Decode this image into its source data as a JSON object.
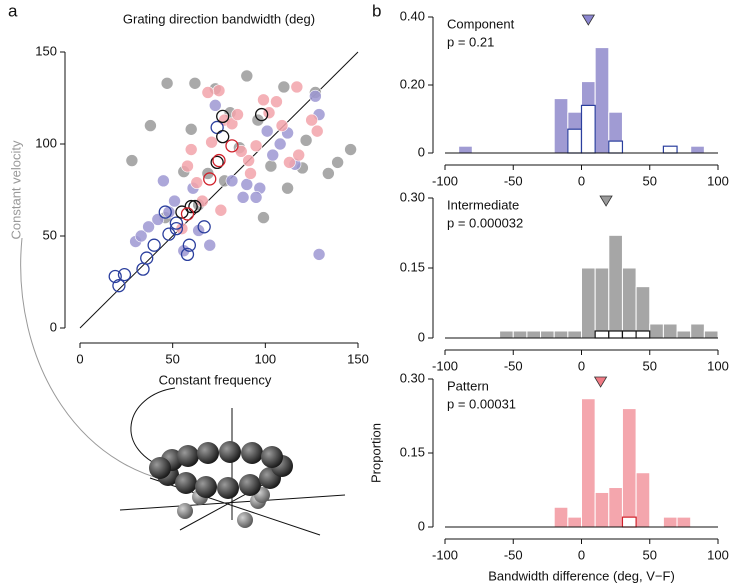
{
  "chart_data": [
    {
      "type": "scatter",
      "panel": "a",
      "title": "Grating direction bandwidth (deg)",
      "xlabel": "Constant frequency",
      "ylabel": "Constant velocity",
      "xlim": [
        0,
        150
      ],
      "ylim": [
        0,
        150
      ],
      "xticks": [
        0,
        50,
        100,
        150
      ],
      "yticks": [
        0,
        50,
        100,
        150
      ],
      "identity_line": true,
      "series": [
        {
          "color": "#9a9a9a",
          "open": false,
          "x": [
            28,
            38,
            47,
            60,
            62,
            69,
            73,
            81,
            90,
            96,
            103,
            110,
            112,
            122,
            127,
            134,
            139,
            146,
            99,
            78,
            86,
            56,
            46,
            64,
            120
          ],
          "values": [
            91,
            110,
            133,
            108,
            133,
            84,
            130,
            117,
            137,
            113,
            88,
            131,
            76,
            102,
            128,
            84,
            90,
            97,
            60,
            80,
            98,
            85,
            60,
            67,
            87
          ]
        },
        {
          "color": "#9d98d2",
          "open": false,
          "x": [
            30,
            33,
            42,
            45,
            51,
            56,
            64,
            73,
            82,
            90,
            97,
            101,
            104,
            112,
            116,
            129,
            129,
            127,
            61,
            48,
            37,
            88,
            70,
            95,
            108
          ],
          "values": [
            47,
            50,
            59,
            80,
            69,
            42,
            53,
            121,
            80,
            78,
            76,
            107,
            94,
            106,
            89,
            116,
            40,
            126,
            76,
            63,
            55,
            71,
            45,
            71,
            100
          ]
        },
        {
          "color": "#f2a3aa",
          "open": false,
          "x": [
            55,
            60,
            63,
            71,
            78,
            82,
            85,
            91,
            95,
            99,
            102,
            106,
            109,
            113,
            117,
            125,
            128,
            75,
            69,
            87,
            92,
            66,
            58,
            76,
            118
          ],
          "values": [
            54,
            97,
            79,
            101,
            113,
            111,
            116,
            91,
            99,
            124,
            117,
            123,
            110,
            90,
            131,
            113,
            107,
            129,
            128,
            96,
            84,
            69,
            88,
            64,
            94
          ]
        },
        {
          "color": "#2b3f9e",
          "open": true,
          "x": [
            19,
            21,
            24,
            34,
            36,
            40,
            48,
            52,
            58,
            59,
            67,
            52,
            46,
            74
          ],
          "values": [
            28,
            23,
            29,
            32,
            38,
            45,
            51,
            54,
            40,
            45,
            55,
            57,
            63,
            109
          ]
        },
        {
          "color": "#111111",
          "open": true,
          "x": [
            60,
            62,
            77,
            77,
            98,
            55,
            74
          ],
          "values": [
            66,
            66,
            104,
            115,
            116,
            63,
            90
          ]
        },
        {
          "color": "#d0202a",
          "open": true,
          "x": [
            75,
            70,
            82,
            58
          ],
          "values": [
            91,
            81,
            99,
            62
          ]
        }
      ]
    },
    {
      "type": "histogram",
      "panel": "b",
      "title": "Component",
      "subtitle": "p = 0.21",
      "xlim": [
        -100,
        100
      ],
      "xticks": [
        -100,
        -50,
        0,
        50,
        100
      ],
      "ylim": [
        0,
        0.4
      ],
      "yticks": [
        0,
        {
          "value": 0.2,
          "label": "0.20"
        },
        {
          "value": 0.4,
          "label": "0.40"
        }
      ],
      "bins": [
        -100,
        -90,
        -80,
        -70,
        -60,
        -50,
        -40,
        -30,
        -20,
        -10,
        0,
        10,
        20,
        30,
        40,
        50,
        60,
        70,
        80,
        90,
        100
      ],
      "series": [
        {
          "color": "#a09bd3",
          "open": false,
          "values": [
            0,
            0.02,
            0,
            0,
            0,
            0,
            0,
            0,
            0.16,
            0.12,
            0.21,
            0.31,
            0.12,
            0,
            0,
            0,
            0,
            0,
            0.02,
            0
          ]
        },
        {
          "color": "#2b3f9e",
          "open": true,
          "values": [
            0,
            0,
            0,
            0,
            0,
            0,
            0,
            0,
            0,
            0.07,
            0.14,
            0,
            0.035,
            0,
            0,
            0,
            0.02,
            0,
            0,
            0
          ]
        }
      ],
      "median": {
        "value": 5,
        "color": "#8b86d0"
      }
    },
    {
      "type": "histogram",
      "title": "Intermediate",
      "subtitle": "p = 0.000032",
      "xlim": [
        -100,
        100
      ],
      "xticks": [
        -100,
        -50,
        0,
        50,
        100
      ],
      "ylim": [
        0,
        0.3
      ],
      "yticks": [
        0,
        {
          "value": 0.15,
          "label": "0.15"
        },
        {
          "value": 0.3,
          "label": "0.30"
        }
      ],
      "bins": [
        -100,
        -90,
        -80,
        -70,
        -60,
        -50,
        -40,
        -30,
        -20,
        -10,
        0,
        10,
        20,
        30,
        40,
        50,
        60,
        70,
        80,
        90,
        100
      ],
      "series": [
        {
          "color": "#a6a6a6",
          "open": false,
          "values": [
            0,
            0,
            0,
            0,
            0.015,
            0.015,
            0.015,
            0.015,
            0.015,
            0.015,
            0.15,
            0.15,
            0.22,
            0.15,
            0.11,
            0.03,
            0.03,
            0.015,
            0.03,
            0.015
          ]
        },
        {
          "color": "#111111",
          "open": true,
          "values": [
            0,
            0,
            0,
            0,
            0,
            0,
            0,
            0,
            0,
            0,
            0,
            0.015,
            0.015,
            0.015,
            0.015,
            0,
            0,
            0,
            0,
            0
          ]
        }
      ],
      "median": {
        "value": 18,
        "color": "#9a9a9a"
      }
    },
    {
      "type": "histogram",
      "title": "Pattern",
      "subtitle": "p = 0.00031",
      "xlabel": "Bandwidth difference (deg, V−F)",
      "ylabel": "Proportion",
      "xlim": [
        -100,
        100
      ],
      "xticks": [
        -100,
        -50,
        0,
        50,
        100
      ],
      "ylim": [
        0,
        0.3
      ],
      "yticks": [
        0,
        {
          "value": 0.15,
          "label": "0.15"
        },
        {
          "value": 0.3,
          "label": "0.30"
        }
      ],
      "bins": [
        -100,
        -90,
        -80,
        -70,
        -60,
        -50,
        -40,
        -30,
        -20,
        -10,
        0,
        10,
        20,
        30,
        40,
        50,
        60,
        70,
        80,
        90,
        100
      ],
      "series": [
        {
          "color": "#f4a6ad",
          "open": false,
          "values": [
            0,
            0,
            0,
            0,
            0,
            0,
            0,
            0,
            0.04,
            0.02,
            0.26,
            0.07,
            0.08,
            0.24,
            0.11,
            0,
            0.02,
            0.02,
            0,
            0
          ]
        },
        {
          "color": "#d0202a",
          "open": true,
          "values": [
            0,
            0,
            0,
            0,
            0,
            0,
            0,
            0,
            0,
            0,
            0,
            0,
            0,
            0.02,
            0,
            0,
            0,
            0,
            0,
            0
          ]
        }
      ],
      "median": {
        "value": 14,
        "color": "#f07a84"
      }
    }
  ]
}
